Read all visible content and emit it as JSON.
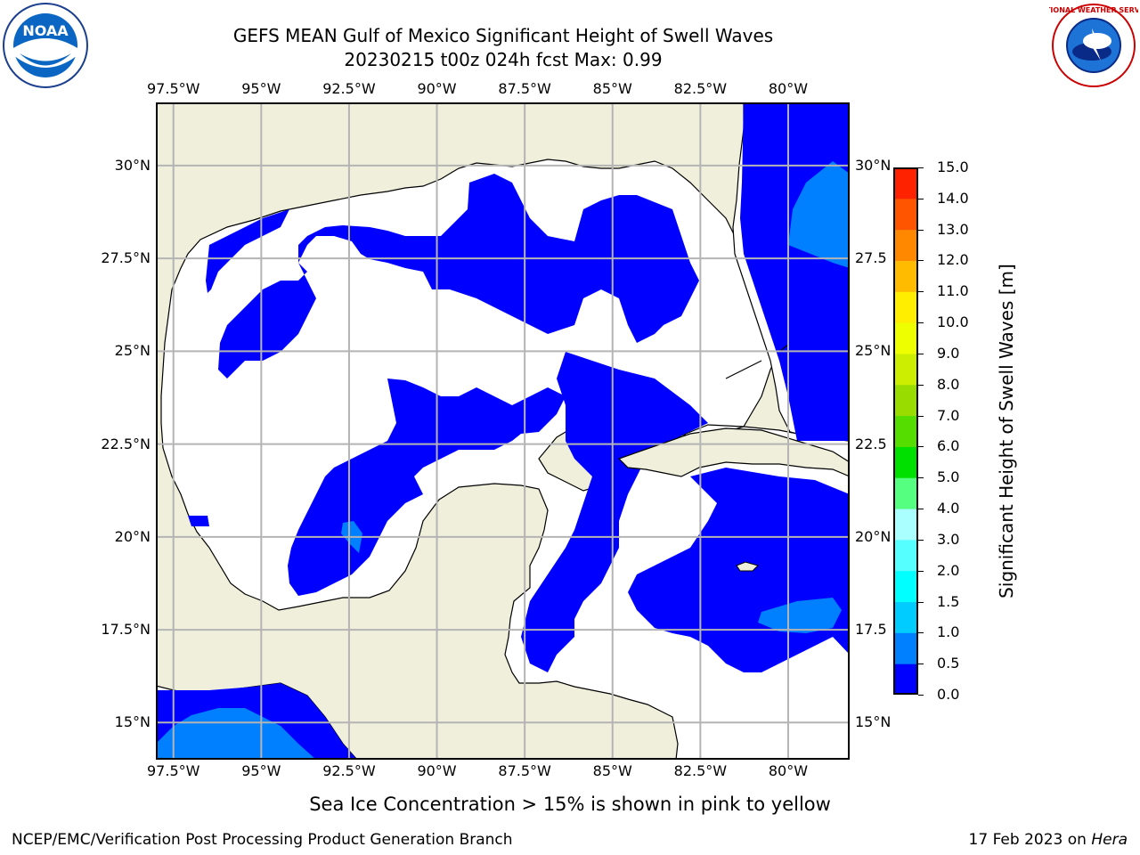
{
  "header": {
    "title_line1": "GEFS MEAN Gulf of Mexico Significant Height of Swell Waves",
    "title_line2": "20230215 t00z 024h fcst   Max: 0.99"
  },
  "logos": {
    "left": "NOAA",
    "right": "NATIONAL WEATHER SERVICE"
  },
  "axes": {
    "lon_labels": [
      "97.5°W",
      "95°W",
      "92.5°W",
      "90°W",
      "87.5°W",
      "85°W",
      "82.5°W",
      "80°W"
    ],
    "lon_values": [
      -97.5,
      -95,
      -92.5,
      -90,
      -87.5,
      -85,
      -82.5,
      -80
    ],
    "lat_labels": [
      "30°N",
      "27.5°N",
      "25°N",
      "22.5°N",
      "20°N",
      "17.5°N",
      "15°N"
    ],
    "lat_values": [
      30,
      27.5,
      25,
      22.5,
      20,
      17.5,
      15
    ],
    "right_lat_labels": [
      "30°N",
      "27.5",
      "25°N",
      "22.5",
      "20°N",
      "17.5",
      "15°N"
    ],
    "lon_range": [
      -98,
      -78.25
    ],
    "lat_range": [
      14,
      31.7
    ]
  },
  "colorbar": {
    "label": "Significant Height of Swell Waves [m]",
    "ticks": [
      "0.0",
      "0.5",
      "1.0",
      "1.5",
      "2.0",
      "3.0",
      "4.0",
      "5.0",
      "6.0",
      "7.0",
      "8.0",
      "9.0",
      "10.0",
      "11.0",
      "12.0",
      "13.0",
      "14.0",
      "15.0"
    ],
    "colors": [
      "#0000ff",
      "#0080ff",
      "#00ccff",
      "#00ffff",
      "#55ffff",
      "#aaffff",
      "#55ff80",
      "#00e000",
      "#55dd00",
      "#99dd00",
      "#ccee00",
      "#eeff00",
      "#ffee00",
      "#ffbb00",
      "#ff8800",
      "#ff5500",
      "#ff2200",
      "#ff0000"
    ]
  },
  "colors": {
    "land": "#efefdc",
    "ocean_low": "#0000ff",
    "ocean_mid": "#0080ff",
    "grid": "#b4b4b4"
  },
  "note": "Sea Ice Concentration > 15% is shown in pink to yellow",
  "footer": {
    "left": "NCEP/EMC/Verification Post Processing Product Generation Branch",
    "right_prefix": "17 Feb 2023 on ",
    "right_host": "Hera"
  }
}
